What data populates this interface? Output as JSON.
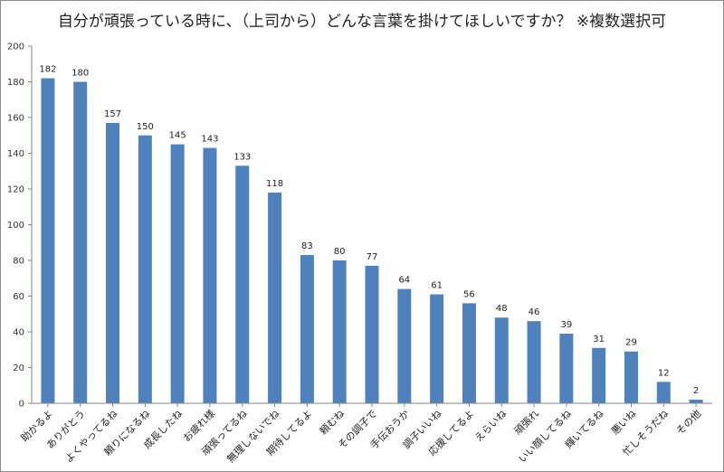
{
  "chart_data": {
    "type": "bar",
    "title": "自分が頑張っている時に、（上司から）どんな言葉を掛けてほしいですか？ ※複数選択可",
    "categories": [
      "助かるよ",
      "ありがとう",
      "よくやってるね",
      "頼りになるね",
      "成長したね",
      "お疲れ様",
      "頑張ってるね",
      "無理しないでね",
      "期待してるよ",
      "頼むね",
      "その調子で",
      "手伝おうか",
      "調子いいね",
      "応援してるよ",
      "えらいね",
      "頑張れ",
      "いい顔してるね",
      "輝いてるね",
      "悪いね",
      "忙しそうだね",
      "その他"
    ],
    "values": [
      182,
      180,
      157,
      150,
      145,
      143,
      133,
      118,
      83,
      80,
      77,
      64,
      61,
      56,
      48,
      46,
      39,
      31,
      29,
      12,
      2
    ],
    "ylim": [
      0,
      200
    ],
    "yticks": [
      0,
      20,
      40,
      60,
      80,
      100,
      120,
      140,
      160,
      180,
      200
    ],
    "grid": false,
    "legend": "none",
    "colors": {
      "bar": "#4f81bd",
      "axis": "#868686"
    }
  }
}
